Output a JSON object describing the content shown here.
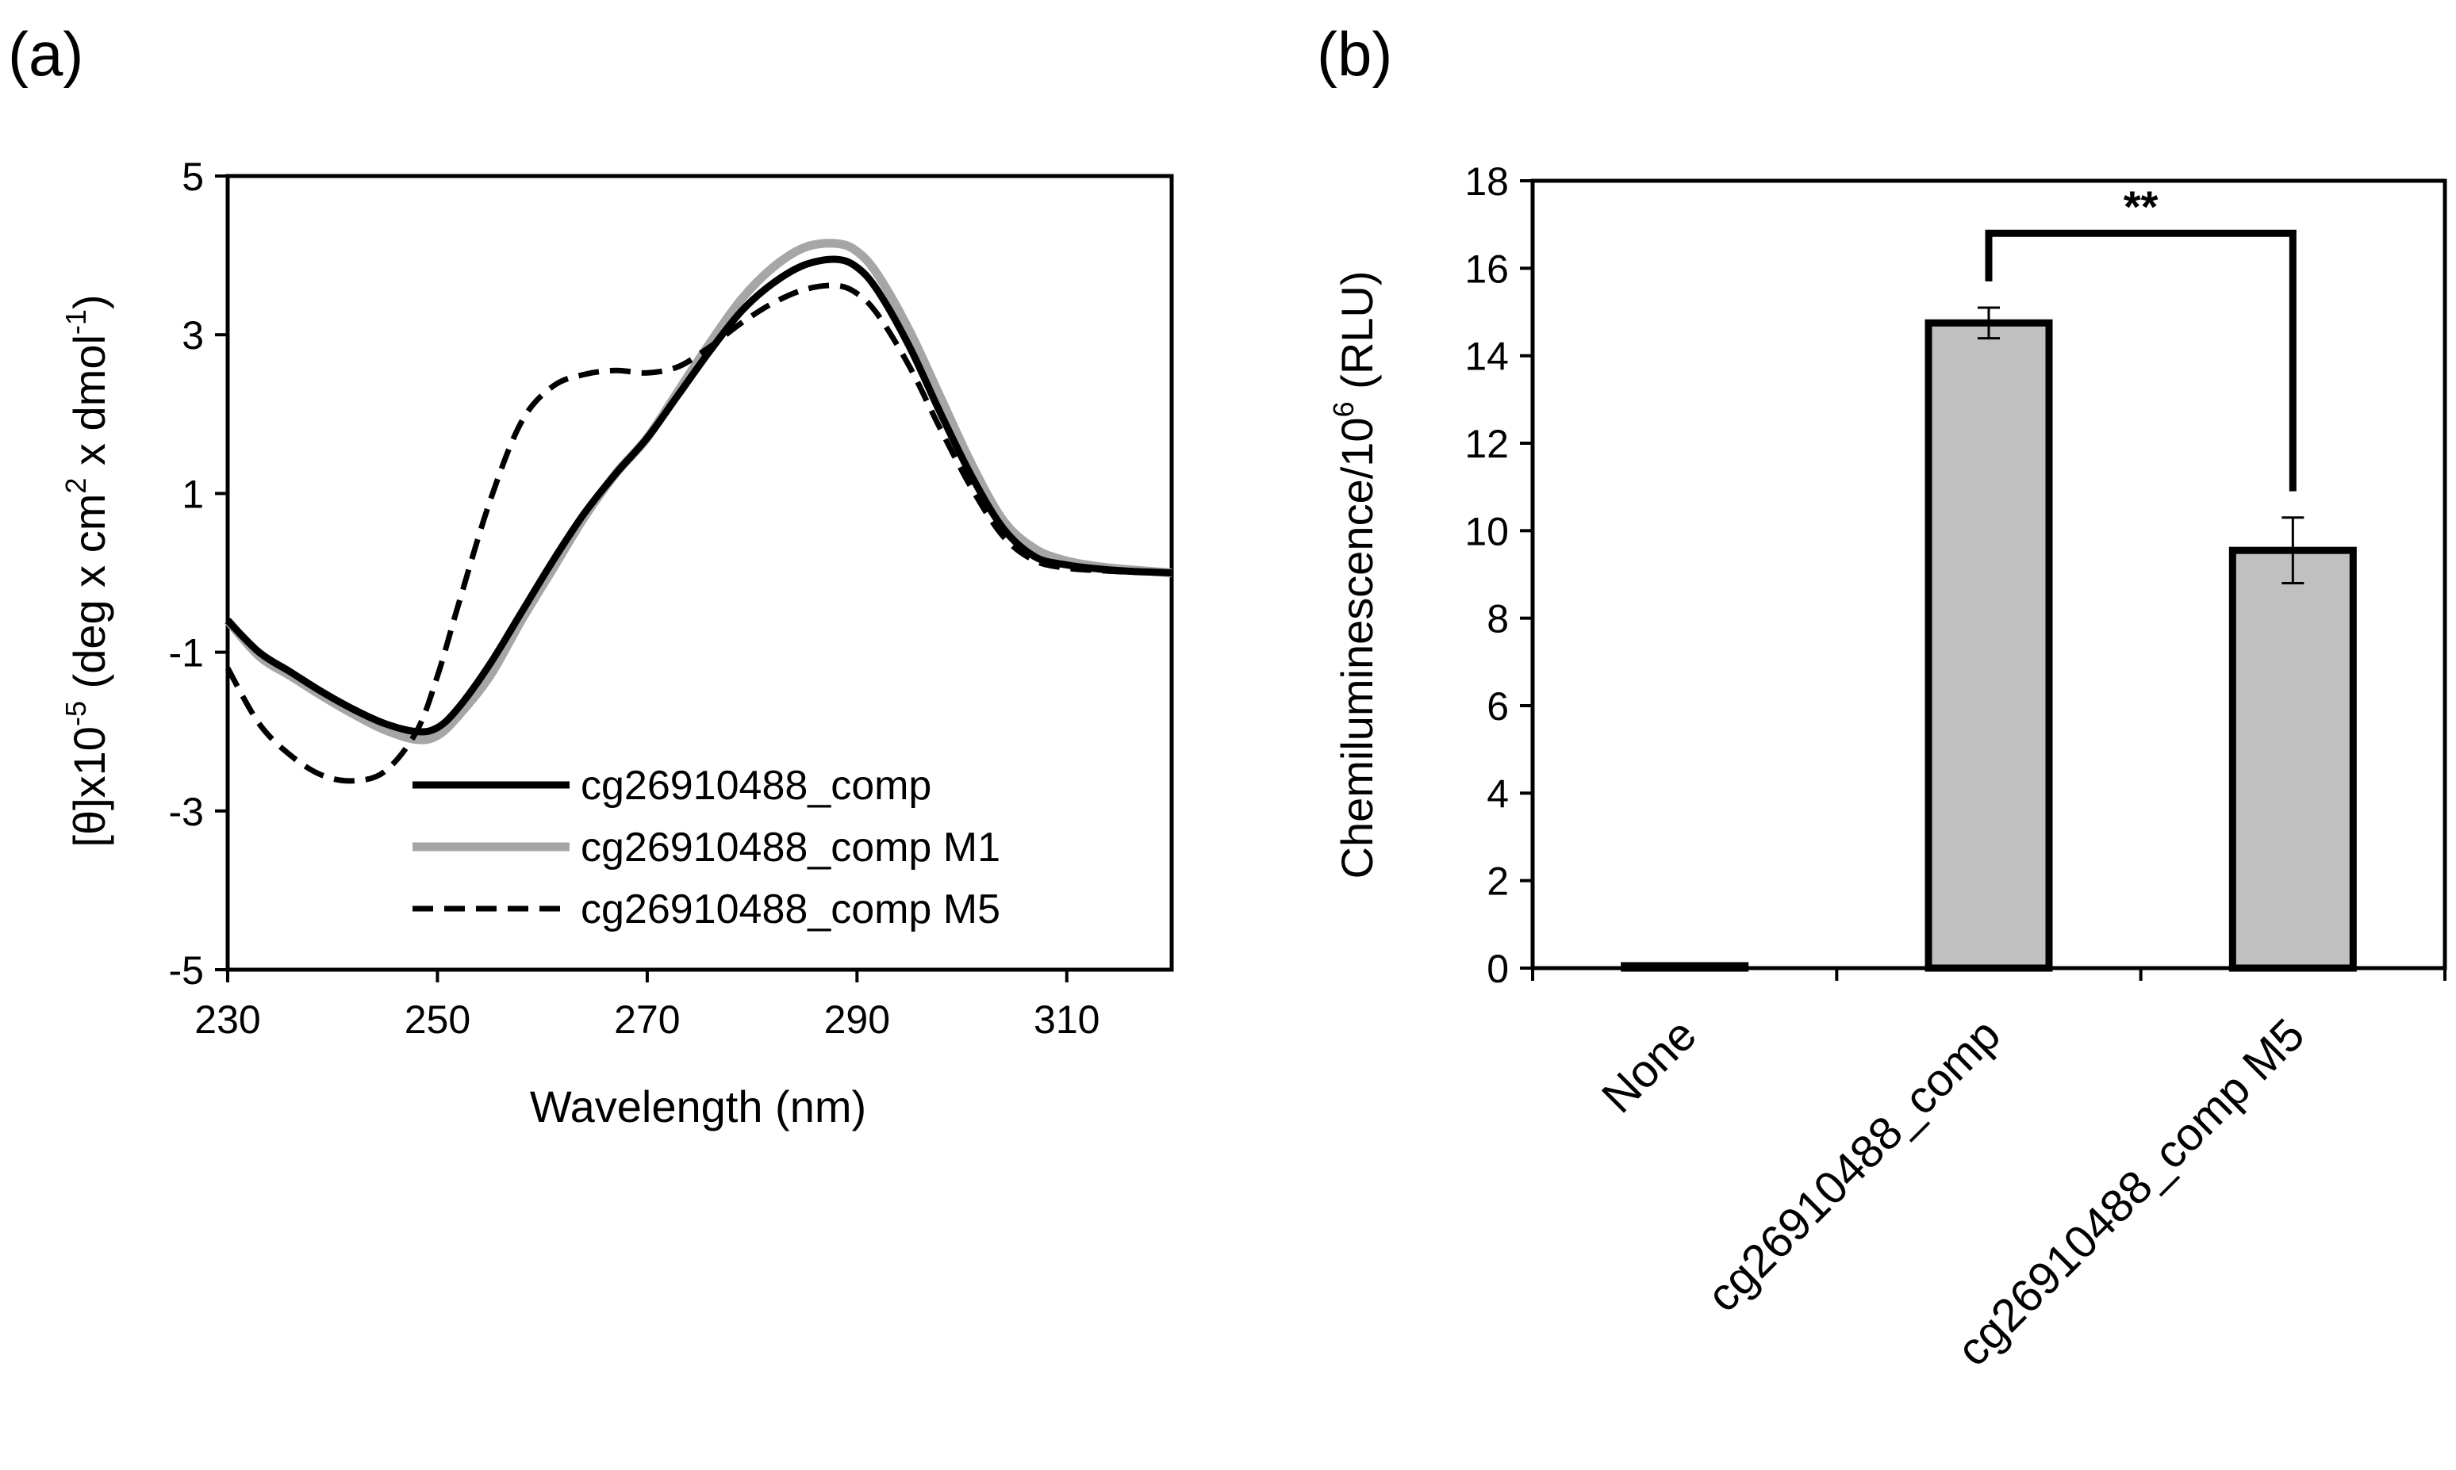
{
  "chart_data": [
    {
      "panel": "(a)",
      "type": "line",
      "xlabel": "Wavelength (nm)",
      "ylabel": {
        "pre": "[θ]x10",
        "sup1": "-5",
        "mid1": " (deg x cm",
        "sup2": "2",
        "mid2": " x dmol",
        "sup3": "-1",
        "post": ")"
      },
      "xlim": [
        230,
        320
      ],
      "ylim": [
        -5,
        5
      ],
      "xticks": [
        230,
        250,
        270,
        290,
        310
      ],
      "yticks": [
        5,
        3,
        1,
        -1,
        -3,
        -5
      ],
      "legend_position": "bottom-right",
      "series": [
        {
          "name": "cg26910488_comp",
          "color": "#000000",
          "style": "solid",
          "x": [
            230,
            233,
            236,
            239,
            242,
            245,
            248,
            250,
            252,
            255,
            258,
            261,
            264,
            267,
            270,
            273,
            276,
            279,
            282,
            285,
            288,
            290,
            292,
            295,
            298,
            301,
            304,
            307,
            310,
            313,
            316,
            320
          ],
          "y": [
            -0.6,
            -1.0,
            -1.25,
            -1.5,
            -1.72,
            -1.9,
            -2.0,
            -1.95,
            -1.7,
            -1.15,
            -0.5,
            0.15,
            0.75,
            1.25,
            1.7,
            2.25,
            2.8,
            3.3,
            3.65,
            3.88,
            3.95,
            3.85,
            3.55,
            2.85,
            2.0,
            1.2,
            0.55,
            0.2,
            0.1,
            0.05,
            0.02,
            0.0
          ]
        },
        {
          "name": "cg26910488_comp M1",
          "color": "#a6a6a6",
          "style": "solid",
          "x": [
            230,
            233,
            236,
            239,
            242,
            245,
            248,
            250,
            252,
            255,
            258,
            261,
            264,
            267,
            270,
            273,
            276,
            279,
            282,
            285,
            288,
            290,
            292,
            295,
            298,
            301,
            304,
            307,
            310,
            313,
            316,
            320
          ],
          "y": [
            -0.6,
            -1.05,
            -1.3,
            -1.55,
            -1.78,
            -1.98,
            -2.1,
            -2.05,
            -1.8,
            -1.3,
            -0.6,
            0.05,
            0.7,
            1.25,
            1.7,
            2.3,
            2.9,
            3.45,
            3.85,
            4.1,
            4.15,
            4.05,
            3.75,
            3.05,
            2.2,
            1.35,
            0.65,
            0.3,
            0.15,
            0.08,
            0.04,
            0.0
          ]
        },
        {
          "name": "cg26910488_comp M5",
          "color": "#000000",
          "style": "dashed",
          "x": [
            230,
            233,
            236,
            239,
            242,
            245,
            248,
            250,
            252,
            255,
            258,
            261,
            264,
            267,
            270,
            273,
            276,
            279,
            282,
            285,
            288,
            290,
            292,
            295,
            298,
            301,
            304,
            307,
            310,
            313,
            316,
            320
          ],
          "y": [
            -1.2,
            -1.9,
            -2.3,
            -2.55,
            -2.62,
            -2.5,
            -2.0,
            -1.3,
            -0.4,
            0.9,
            1.9,
            2.35,
            2.5,
            2.55,
            2.52,
            2.6,
            2.85,
            3.15,
            3.4,
            3.57,
            3.62,
            3.52,
            3.25,
            2.6,
            1.8,
            1.05,
            0.45,
            0.15,
            0.06,
            0.03,
            0.01,
            0.0
          ]
        }
      ]
    },
    {
      "panel": "(b)",
      "type": "bar",
      "ylabel": {
        "pre": "Chemiluminescence/10",
        "sup": "6",
        "post": " (RLU)"
      },
      "ylim": [
        0,
        18
      ],
      "yticks": [
        0,
        2,
        4,
        6,
        8,
        10,
        12,
        14,
        16,
        18
      ],
      "categories": [
        "None",
        "cg26910488_comp",
        "cg26910488_comp M5"
      ],
      "values": [
        0.05,
        14.75,
        9.55
      ],
      "errors": [
        0,
        0.35,
        0.75
      ],
      "bar_color": "#c0c0c0",
      "significance": {
        "label": "**",
        "between": [
          1,
          2
        ],
        "y": 16.8
      }
    }
  ]
}
